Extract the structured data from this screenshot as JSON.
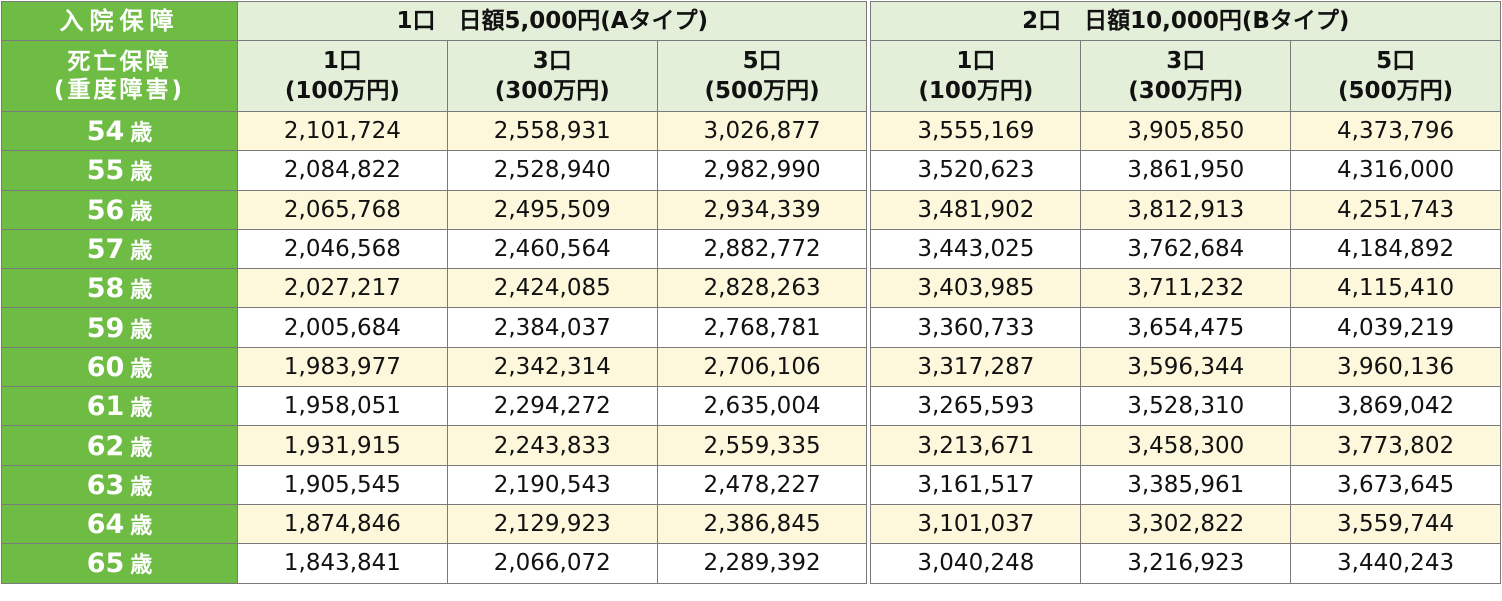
{
  "header": {
    "hospital_label": "入院保障",
    "death_label_line1": "死亡保障",
    "death_label_line2": "(重度障害)",
    "group_a": "1口　日額5,000円(Aタイプ)",
    "group_b": "2口　日額10,000円(Bタイプ)",
    "units": [
      {
        "count": "1口",
        "amount": "(100万円)"
      },
      {
        "count": "3口",
        "amount": "(300万円)"
      },
      {
        "count": "5口",
        "amount": "(500万円)"
      }
    ]
  },
  "age_unit": "歳",
  "rows": [
    {
      "age": "54",
      "a": [
        "2,101,724",
        "2,558,931",
        "3,026,877"
      ],
      "b": [
        "3,555,169",
        "3,905,850",
        "4,373,796"
      ]
    },
    {
      "age": "55",
      "a": [
        "2,084,822",
        "2,528,940",
        "2,982,990"
      ],
      "b": [
        "3,520,623",
        "3,861,950",
        "4,316,000"
      ]
    },
    {
      "age": "56",
      "a": [
        "2,065,768",
        "2,495,509",
        "2,934,339"
      ],
      "b": [
        "3,481,902",
        "3,812,913",
        "4,251,743"
      ]
    },
    {
      "age": "57",
      "a": [
        "2,046,568",
        "2,460,564",
        "2,882,772"
      ],
      "b": [
        "3,443,025",
        "3,762,684",
        "4,184,892"
      ]
    },
    {
      "age": "58",
      "a": [
        "2,027,217",
        "2,424,085",
        "2,828,263"
      ],
      "b": [
        "3,403,985",
        "3,711,232",
        "4,115,410"
      ]
    },
    {
      "age": "59",
      "a": [
        "2,005,684",
        "2,384,037",
        "2,768,781"
      ],
      "b": [
        "3,360,733",
        "3,654,475",
        "4,039,219"
      ]
    },
    {
      "age": "60",
      "a": [
        "1,983,977",
        "2,342,314",
        "2,706,106"
      ],
      "b": [
        "3,317,287",
        "3,596,344",
        "3,960,136"
      ]
    },
    {
      "age": "61",
      "a": [
        "1,958,051",
        "2,294,272",
        "2,635,004"
      ],
      "b": [
        "3,265,593",
        "3,528,310",
        "3,869,042"
      ]
    },
    {
      "age": "62",
      "a": [
        "1,931,915",
        "2,243,833",
        "2,559,335"
      ],
      "b": [
        "3,213,671",
        "3,458,300",
        "3,773,802"
      ]
    },
    {
      "age": "63",
      "a": [
        "1,905,545",
        "2,190,543",
        "2,478,227"
      ],
      "b": [
        "3,161,517",
        "3,385,961",
        "3,673,645"
      ]
    },
    {
      "age": "64",
      "a": [
        "1,874,846",
        "2,129,923",
        "2,386,845"
      ],
      "b": [
        "3,101,037",
        "3,302,822",
        "3,559,744"
      ]
    },
    {
      "age": "65",
      "a": [
        "1,843,841",
        "2,066,072",
        "2,289,392"
      ],
      "b": [
        "3,040,248",
        "3,216,923",
        "3,440,243"
      ]
    }
  ],
  "colors": {
    "label_green": "#6fbc45",
    "header_green": "#e4efd9",
    "row_yellow": "#fdf8dc",
    "border": "#7a7a7a"
  }
}
